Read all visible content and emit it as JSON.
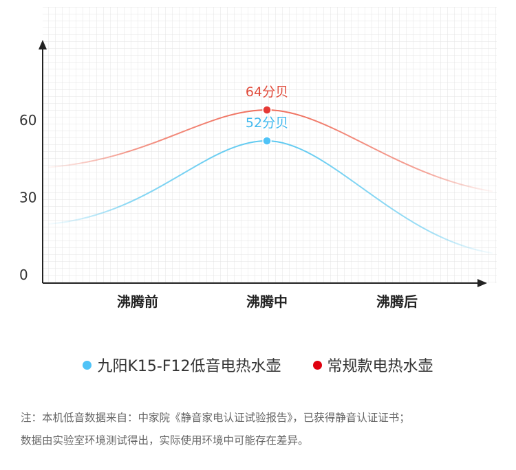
{
  "chart_data": {
    "type": "line",
    "categories": [
      "沸腾前",
      "沸腾中",
      "沸腾后"
    ],
    "y_ticks": [
      "0",
      "30",
      "60"
    ],
    "ylim": [
      0,
      90
    ],
    "series": [
      {
        "name": "常规款电热水壶",
        "color": "#e53935",
        "line_color": "#ef6b58",
        "values": [
          46,
          64,
          34
        ],
        "peak_label": "64分贝"
      },
      {
        "name": "九阳K15-F12低音电热水壶",
        "color": "#4fc3f7",
        "line_color": "#5ac8f0",
        "values": [
          24,
          52,
          10
        ],
        "peak_label": "52分贝"
      }
    ],
    "grid": true
  },
  "legend": {
    "items": [
      {
        "label": "九阳K15-F12低音电热水壶",
        "color": "#4fc3f7"
      },
      {
        "label": "常规款电热水壶",
        "color": "#e0000f"
      }
    ]
  },
  "note": {
    "line1": "注：本机低音数据来自：中家院《静音家电认证试验报告》，已获得静音认证证书；",
    "line2": "数据由实验室环境测试得出，实际使用环境中可能存在差异。"
  }
}
